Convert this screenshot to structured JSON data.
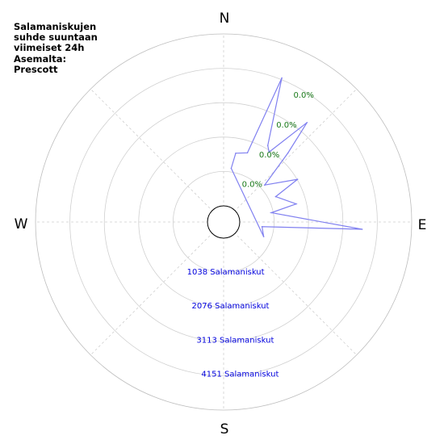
{
  "title": "Salamaniskujen\nsuhde suuntaan\nviimeiset 24h\nAsemalta:\nPrescott",
  "chart_data": {
    "type": "polar-area",
    "directions": [
      "N",
      "E",
      "S",
      "W"
    ],
    "radial_percent_labels": [
      "0.0%",
      "0.0%",
      "0.0%",
      "0.0%"
    ],
    "radial_count_labels": [
      "1038 Salamaniskut",
      "2076 Salamaniskut",
      "3113 Salamaniskut",
      "4151 Salamaniskut"
    ],
    "radial_max": 5190,
    "series_color": "#8080f0",
    "polygon": [
      {
        "bearing": 8,
        "value": 1150
      },
      {
        "bearing": 10,
        "value": 1620
      },
      {
        "bearing": 19,
        "value": 1720
      },
      {
        "bearing": 22,
        "value": 4200
      },
      {
        "bearing": 30,
        "value": 2180
      },
      {
        "bearing": 33,
        "value": 2030
      },
      {
        "bearing": 40,
        "value": 3430
      },
      {
        "bearing": 43,
        "value": 2360
      },
      {
        "bearing": 48,
        "value": 1180
      },
      {
        "bearing": 60,
        "value": 2090
      },
      {
        "bearing": 64,
        "value": 1260
      },
      {
        "bearing": 76,
        "value": 1770
      },
      {
        "bearing": 79,
        "value": 980
      },
      {
        "bearing": 93,
        "value": 3700
      },
      {
        "bearing": 97,
        "value": 680
      },
      {
        "bearing": 110,
        "value": 800
      }
    ]
  }
}
